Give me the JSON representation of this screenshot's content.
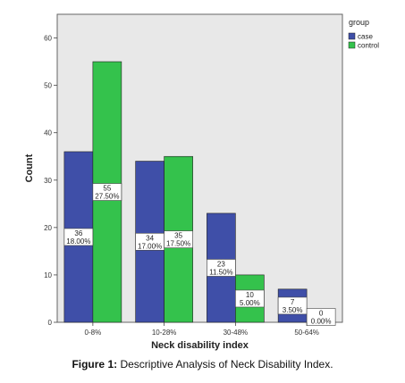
{
  "chart_data": {
    "type": "bar",
    "categories": [
      "0-8%",
      "10-28%",
      "30-48%",
      "50-64%"
    ],
    "series": [
      {
        "name": "case",
        "color": "#3F4FA8",
        "values": [
          36,
          34,
          23,
          7
        ],
        "labels": [
          "36\n18.00%",
          "34\n17.00%",
          "23\n11.50%",
          "7\n3.50%"
        ]
      },
      {
        "name": "control",
        "color": "#34C24C",
        "values": [
          55,
          35,
          10,
          0
        ],
        "labels": [
          "55\n27.50%",
          "35\n17.50%",
          "10\n5.00%",
          "0\n0.00%"
        ]
      }
    ],
    "xlabel": "Neck disability index",
    "ylabel": "Count",
    "ylim": [
      0,
      65
    ],
    "yticks": [
      0,
      10,
      20,
      30,
      40,
      50,
      60
    ],
    "legend_title": "group",
    "legend_position": "right-top",
    "plot_background": "#E8E8E8",
    "grid": false
  },
  "caption": {
    "prefix": "Figure 1:",
    "text": " Descriptive Analysis of Neck Disability Index."
  }
}
